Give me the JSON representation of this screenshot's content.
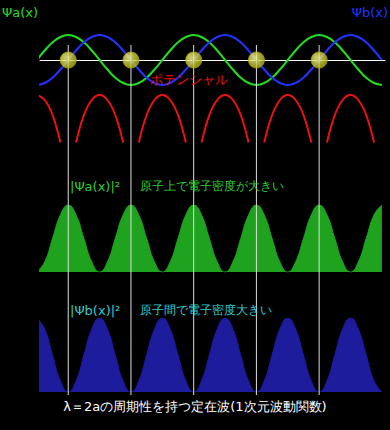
{
  "chart_data": {
    "type": "line",
    "tick_labels": false,
    "grid": false,
    "caption": "λ＝2aの周期性を持つ定在波(1次元波動関数)",
    "caption_color": "#ffffff",
    "atom_lines": [
      0,
      1,
      2,
      3,
      4
    ],
    "xlim": [
      -0.45,
      5.05
    ],
    "x": [
      -0.5,
      -0.375,
      -0.25,
      -0.125,
      0,
      0.125,
      0.25,
      0.375,
      0.5,
      0.625,
      0.75,
      0.875,
      1,
      1.125,
      1.25,
      1.375,
      1.5,
      1.625,
      1.75,
      1.875,
      2,
      2.125,
      2.25,
      2.375,
      2.5,
      2.625,
      2.75,
      2.875,
      3,
      3.125,
      3.25,
      3.375,
      3.5,
      3.625,
      3.75,
      3.875,
      4,
      4.125,
      4.25,
      4.375,
      4.5,
      4.625,
      4.75,
      4.875,
      5
    ],
    "panels": [
      {
        "ylim": [
          -3.6,
          1.3
        ],
        "series": [
          {
            "name": "Ψa(x)",
            "type": "line",
            "color": "#22dd22",
            "values": [
              0,
              0.38,
              0.71,
              0.92,
              1,
              0.92,
              0.71,
              0.38,
              0,
              -0.38,
              -0.71,
              -0.92,
              -1,
              -0.92,
              -0.71,
              -0.38,
              0,
              0.38,
              0.71,
              0.92,
              1,
              0.92,
              0.71,
              0.38,
              0,
              -0.38,
              -0.71,
              -0.92,
              -1,
              -0.92,
              -0.71,
              -0.38,
              0,
              0.38,
              0.71,
              0.92,
              1,
              0.92,
              0.71,
              0.38,
              0,
              -0.38,
              -0.71,
              -0.92,
              -1
            ]
          },
          {
            "name": "Ψb(x)",
            "type": "line",
            "color": "#2233ff",
            "values": [
              -1,
              -0.92,
              -0.71,
              -0.38,
              0,
              0.38,
              0.71,
              0.92,
              1,
              0.92,
              0.71,
              0.38,
              0,
              -0.38,
              -0.71,
              -0.92,
              -1,
              -0.92,
              -0.71,
              -0.38,
              0,
              0.38,
              0.71,
              0.92,
              1,
              0.92,
              0.71,
              0.38,
              0,
              -0.38,
              -0.71,
              -0.92,
              -1,
              -0.92,
              -0.71,
              -0.38,
              0,
              0.38,
              0.71,
              0.92,
              1,
              0.92,
              0.71,
              0.38,
              0
            ]
          },
          {
            "name": "ポテンシャル",
            "type": "line",
            "color": "#ee1111",
            "values": [
              -1.4,
              -1.6,
              -2.2,
              -3.3,
              null,
              -3.3,
              -2.2,
              -1.6,
              -1.4,
              -1.6,
              -2.2,
              -3.3,
              null,
              -3.3,
              -2.2,
              -1.6,
              -1.4,
              -1.6,
              -2.2,
              -3.3,
              null,
              -3.3,
              -2.2,
              -1.6,
              -1.4,
              -1.6,
              -2.2,
              -3.3,
              null,
              -3.3,
              -2.2,
              -1.6,
              -1.4,
              -1.6,
              -2.2,
              -3.3,
              null,
              -3.3,
              -2.2,
              -1.6,
              -1.4,
              -1.6,
              -2.2,
              -3.3,
              null
            ]
          },
          {
            "type": "scatter",
            "marker": "circle",
            "color": "#a8a800",
            "x": [
              0,
              1,
              2,
              3,
              4
            ],
            "values": [
              0,
              0,
              0,
              0,
              0
            ]
          }
        ]
      },
      {
        "ylim": [
          0,
          1
        ],
        "series": [
          {
            "name": "|Ψa(x)|²",
            "note": "原子上で電子密度が大きい",
            "label_color": "#33cc33",
            "type": "area",
            "color": "#1fa31f",
            "values": [
              0,
              0.15,
              0.5,
              0.85,
              1,
              0.85,
              0.5,
              0.15,
              0,
              0.15,
              0.5,
              0.85,
              1,
              0.85,
              0.5,
              0.15,
              0,
              0.15,
              0.5,
              0.85,
              1,
              0.85,
              0.5,
              0.15,
              0,
              0.15,
              0.5,
              0.85,
              1,
              0.85,
              0.5,
              0.15,
              0,
              0.15,
              0.5,
              0.85,
              1,
              0.85,
              0.5,
              0.15,
              0,
              0.15,
              0.5,
              0.85,
              1
            ]
          }
        ]
      },
      {
        "ylim": [
          0,
          1
        ],
        "series": [
          {
            "name": "|Ψb(x)|²",
            "note": "原子間で電子密度大きい",
            "label_color": "#33cccc",
            "type": "area",
            "color": "#1c1c9c",
            "values": [
              1,
              0.85,
              0.5,
              0.15,
              0,
              0.15,
              0.5,
              0.85,
              1,
              0.85,
              0.5,
              0.15,
              0,
              0.15,
              0.5,
              0.85,
              1,
              0.85,
              0.5,
              0.15,
              0,
              0.15,
              0.5,
              0.85,
              1,
              0.85,
              0.5,
              0.15,
              0,
              0.15,
              0.5,
              0.85,
              1,
              0.85,
              0.5,
              0.15,
              0,
              0.15,
              0.5,
              0.85,
              1,
              0.85,
              0.5,
              0.15,
              0
            ]
          }
        ]
      }
    ]
  }
}
